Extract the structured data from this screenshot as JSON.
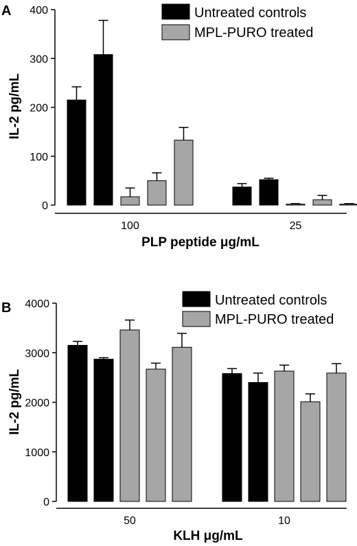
{
  "chart_data": [
    {
      "type": "bar",
      "panel": "A",
      "ylabel": "IL-2 pg/mL",
      "xlabel": "PLP peptide μg/mL",
      "ylim": [
        0,
        400
      ],
      "yticks": [
        "0",
        "100",
        "200",
        "300",
        "400"
      ],
      "categories": [
        "100",
        "25"
      ],
      "legend": [
        {
          "name": "Untreated controls",
          "color": "#000000"
        },
        {
          "name": "MPL-PURO treated",
          "color": "#a6a6a6"
        }
      ],
      "groups": [
        {
          "category": "100",
          "bars": [
            {
              "series": "Untreated controls",
              "value": 215,
              "error": 27
            },
            {
              "series": "Untreated controls",
              "value": 308,
              "error": 70
            },
            {
              "series": "MPL-PURO treated",
              "value": 17,
              "error": 18
            },
            {
              "series": "MPL-PURO treated",
              "value": 50,
              "error": 16
            },
            {
              "series": "MPL-PURO treated",
              "value": 133,
              "error": 26
            }
          ]
        },
        {
          "category": "25",
          "bars": [
            {
              "series": "Untreated controls",
              "value": 37,
              "error": 7
            },
            {
              "series": "Untreated controls",
              "value": 52,
              "error": 3
            },
            {
              "series": "MPL-PURO treated",
              "value": 2,
              "error": 1
            },
            {
              "series": "MPL-PURO treated",
              "value": 11,
              "error": 9
            },
            {
              "series": "MPL-PURO treated",
              "value": 2,
              "error": 1
            }
          ]
        }
      ]
    },
    {
      "type": "bar",
      "panel": "B",
      "ylabel": "IL-2 pg/mL",
      "xlabel": "KLH μg/mL",
      "ylim": [
        0,
        4000
      ],
      "yticks": [
        "0",
        "1000",
        "2000",
        "3000",
        "4000"
      ],
      "categories": [
        "50",
        "10"
      ],
      "legend": [
        {
          "name": "Untreated controls",
          "color": "#000000"
        },
        {
          "name": "MPL-PURO treated",
          "color": "#a6a6a6"
        }
      ],
      "groups": [
        {
          "category": "50",
          "bars": [
            {
              "series": "Untreated controls",
              "value": 3150,
              "error": 80
            },
            {
              "series": "Untreated controls",
              "value": 2870,
              "error": 30
            },
            {
              "series": "MPL-PURO treated",
              "value": 3460,
              "error": 200
            },
            {
              "series": "MPL-PURO treated",
              "value": 2670,
              "error": 120
            },
            {
              "series": "MPL-PURO treated",
              "value": 3110,
              "error": 280
            }
          ]
        },
        {
          "category": "10",
          "bars": [
            {
              "series": "Untreated controls",
              "value": 2580,
              "error": 100
            },
            {
              "series": "Untreated controls",
              "value": 2400,
              "error": 190
            },
            {
              "series": "MPL-PURO treated",
              "value": 2630,
              "error": 120
            },
            {
              "series": "MPL-PURO treated",
              "value": 2010,
              "error": 160
            },
            {
              "series": "MPL-PURO treated",
              "value": 2590,
              "error": 190
            }
          ]
        }
      ]
    }
  ]
}
